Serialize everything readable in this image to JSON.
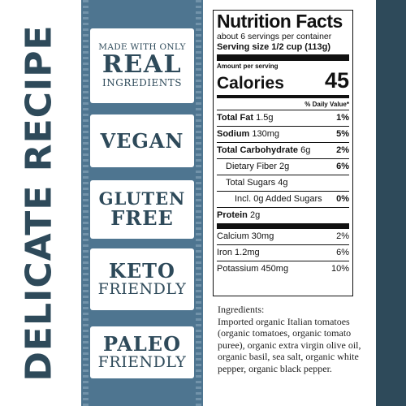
{
  "side_title": "DELICATE RECIPE",
  "badges": {
    "real": {
      "top": "MADE WITH ONLY",
      "main": "REAL",
      "bottom": "INGREDIENTS"
    },
    "vegan": {
      "main": "VEGAN"
    },
    "gluten": {
      "line1": "GLUTEN",
      "line2": "FREE"
    },
    "keto": {
      "main": "KETO",
      "sub": "FRIENDLY"
    },
    "paleo": {
      "main": "PALEO",
      "sub": "FRIENDLY"
    }
  },
  "nutrition": {
    "title": "Nutrition Facts",
    "servings": "about 6 servings per container",
    "serving_size_label": "Serving size",
    "serving_size_value": "1/2 cup (113g)",
    "amount_per_serving": "Amount per serving",
    "calories_label": "Calories",
    "calories_value": "45",
    "daily_value_header": "% Daily Value*",
    "rows": {
      "total_fat": {
        "label": "Total Fat",
        "amount": "1.5g",
        "pct": "1%"
      },
      "sodium": {
        "label": "Sodium",
        "amount": "130mg",
        "pct": "5%"
      },
      "total_carb": {
        "label": "Total Carbohydrate",
        "amount": "6g",
        "pct": "2%"
      },
      "dietary_fiber": {
        "label": "Dietary Fiber",
        "amount": "2g",
        "pct": "6%"
      },
      "total_sugars": {
        "label": "Total Sugars",
        "amount": "4g",
        "pct": ""
      },
      "added_sugars": {
        "label": "Incl. 0g Added Sugars",
        "amount": "",
        "pct": "0%"
      },
      "protein": {
        "label": "Protein",
        "amount": "2g",
        "pct": ""
      }
    },
    "vitamins": {
      "calcium": {
        "label": "Calcium",
        "amount": "30mg",
        "pct": "2%"
      },
      "iron": {
        "label": "Iron",
        "amount": "1.2mg",
        "pct": "6%"
      },
      "potassium": {
        "label": "Potassium",
        "amount": "450mg",
        "pct": "10%"
      }
    }
  },
  "ingredients": {
    "heading": "Ingredients:",
    "text": "Imported organic Italian tomatoes (organic tomatoes, organic tomato puree), organic extra virgin olive oil, organic basil, sea salt, organic white pepper, organic black pepper."
  },
  "colors": {
    "brand_dark": "#2e4a5a",
    "band_blue": "#4e7590"
  }
}
